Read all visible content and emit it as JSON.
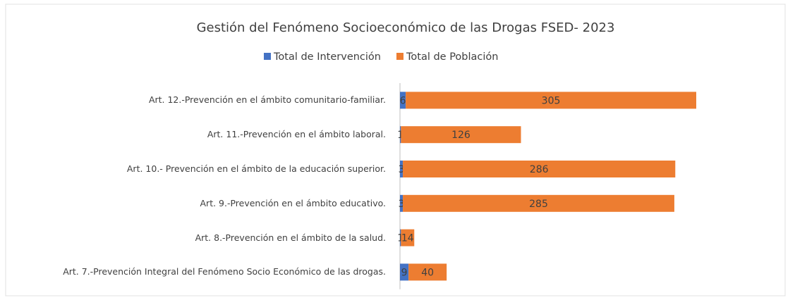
{
  "chart_data": {
    "type": "bar",
    "orientation": "horizontal",
    "stacked": true,
    "title": "Gestión del Fenómeno Socioeconómico de las Drogas FSED- 2023",
    "legend": "top",
    "categories": [
      "Art. 12.-Prevención en el ámbito comunitario-familiar.",
      "Art. 11.-Prevención en el ámbito laboral.",
      "Art. 10.- Prevención en el ámbito de la educación superior.",
      "Art. 9.-Prevención en el ámbito educativo.",
      "Art. 8.-Prevención en el ámbito de la salud.",
      "Art. 7.-Prevención Integral del Fenómeno Socio Económico de las drogas."
    ],
    "series": [
      {
        "name": "Total de Intervención",
        "color": "#4472c4",
        "values": [
          6,
          1,
          3,
          3,
          1,
          9
        ]
      },
      {
        "name": "Total de Población",
        "color": "#ed7d31",
        "values": [
          305,
          126,
          286,
          285,
          14,
          40
        ]
      }
    ]
  }
}
